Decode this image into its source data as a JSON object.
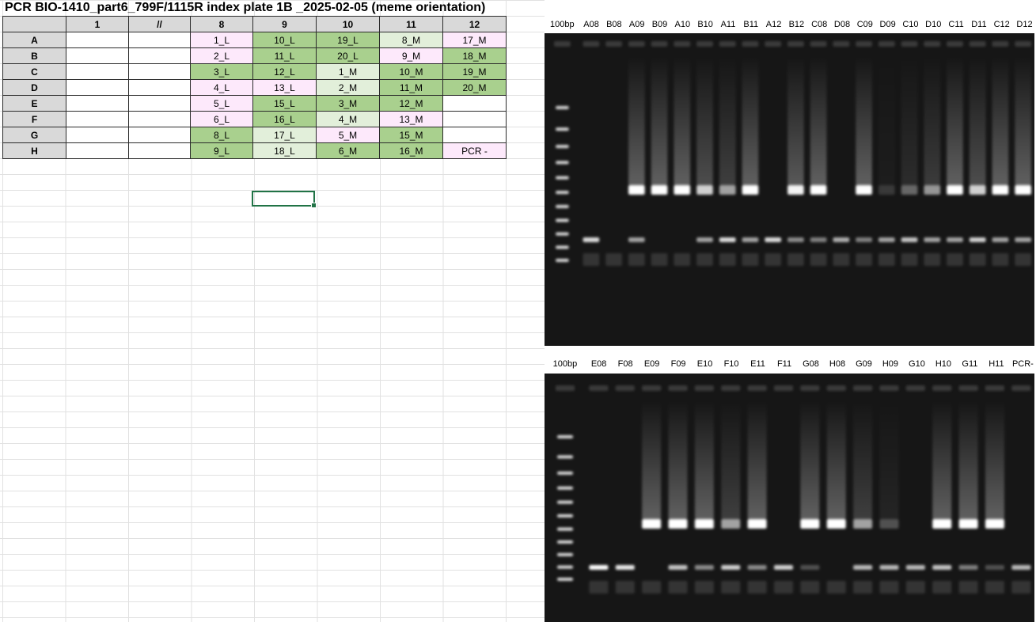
{
  "title": "PCR BIO-1410_part6_799F/1115R index plate 1B _2025-02-05 (meme orientation)",
  "plate": {
    "headers": [
      "",
      "1",
      "//",
      "8",
      "9",
      "10",
      "11",
      "12"
    ],
    "rows": [
      {
        "label": "A",
        "cells": [
          {
            "t": "",
            "c": "w"
          },
          {
            "t": "",
            "c": "w"
          },
          {
            "t": "1_L",
            "c": "p"
          },
          {
            "t": "10_L",
            "c": "g"
          },
          {
            "t": "19_L",
            "c": "g"
          },
          {
            "t": "8_M",
            "c": "lg"
          },
          {
            "t": "17_M",
            "c": "p"
          }
        ]
      },
      {
        "label": "B",
        "cells": [
          {
            "t": "",
            "c": "w"
          },
          {
            "t": "",
            "c": "w"
          },
          {
            "t": "2_L",
            "c": "p"
          },
          {
            "t": "11_L",
            "c": "g"
          },
          {
            "t": "20_L",
            "c": "g"
          },
          {
            "t": "9_M",
            "c": "p"
          },
          {
            "t": "18_M",
            "c": "g"
          }
        ]
      },
      {
        "label": "C",
        "cells": [
          {
            "t": "",
            "c": "w"
          },
          {
            "t": "",
            "c": "w"
          },
          {
            "t": "3_L",
            "c": "g"
          },
          {
            "t": "12_L",
            "c": "g"
          },
          {
            "t": "1_M",
            "c": "lg"
          },
          {
            "t": "10_M",
            "c": "g"
          },
          {
            "t": "19_M",
            "c": "g"
          }
        ]
      },
      {
        "label": "D",
        "cells": [
          {
            "t": "",
            "c": "w"
          },
          {
            "t": "",
            "c": "w"
          },
          {
            "t": "4_L",
            "c": "p"
          },
          {
            "t": "13_L",
            "c": "p"
          },
          {
            "t": "2_M",
            "c": "lg"
          },
          {
            "t": "11_M",
            "c": "g"
          },
          {
            "t": "20_M",
            "c": "g"
          }
        ]
      },
      {
        "label": "E",
        "cells": [
          {
            "t": "",
            "c": "w"
          },
          {
            "t": "",
            "c": "w"
          },
          {
            "t": "5_L",
            "c": "p"
          },
          {
            "t": "15_L",
            "c": "g"
          },
          {
            "t": "3_M",
            "c": "g"
          },
          {
            "t": "12_M",
            "c": "g"
          },
          {
            "t": "",
            "c": "w"
          }
        ]
      },
      {
        "label": "F",
        "cells": [
          {
            "t": "",
            "c": "w"
          },
          {
            "t": "",
            "c": "w"
          },
          {
            "t": "6_L",
            "c": "p"
          },
          {
            "t": "16_L",
            "c": "g"
          },
          {
            "t": "4_M",
            "c": "lg"
          },
          {
            "t": "13_M",
            "c": "p"
          },
          {
            "t": "",
            "c": "w"
          }
        ]
      },
      {
        "label": "G",
        "cells": [
          {
            "t": "",
            "c": "w"
          },
          {
            "t": "",
            "c": "w"
          },
          {
            "t": "8_L",
            "c": "g"
          },
          {
            "t": "17_L",
            "c": "lg"
          },
          {
            "t": "5_M",
            "c": "p"
          },
          {
            "t": "15_M",
            "c": "g"
          },
          {
            "t": "",
            "c": "w"
          }
        ]
      },
      {
        "label": "H",
        "cells": [
          {
            "t": "",
            "c": "w"
          },
          {
            "t": "",
            "c": "w"
          },
          {
            "t": "9_L",
            "c": "g"
          },
          {
            "t": "18_L",
            "c": "lg"
          },
          {
            "t": "6_M",
            "c": "g"
          },
          {
            "t": "16_M",
            "c": "g"
          },
          {
            "t": "PCR -",
            "c": "p"
          }
        ]
      }
    ]
  },
  "colors": {
    "pink": "#fde9fb",
    "green": "#a9d08e",
    "light_green": "#e2efda",
    "selection": "#217346",
    "gel_bg": "#161616"
  },
  "gel_top": {
    "lanes": [
      "100bp",
      "A08",
      "B08",
      "A09",
      "B09",
      "A10",
      "B10",
      "A11",
      "B11",
      "A12",
      "B12",
      "C08",
      "D08",
      "C09",
      "D09",
      "C10",
      "D10",
      "C11",
      "D11",
      "C12",
      "D12"
    ],
    "amplicon_strength": [
      0,
      0,
      0,
      1.0,
      1.0,
      1.0,
      0.75,
      0.55,
      1.0,
      0,
      0.9,
      1.0,
      0,
      1.0,
      0.1,
      0.3,
      0.5,
      1.0,
      0.75,
      1.0,
      1.0
    ],
    "small_band": [
      0,
      0.85,
      0,
      0.6,
      0,
      0,
      0.6,
      0.85,
      0.6,
      0.85,
      0.5,
      0.45,
      0.65,
      0.45,
      0.6,
      0.75,
      0.6,
      0.6,
      0.8,
      0.6,
      0.6
    ]
  },
  "gel_bottom": {
    "lanes": [
      "100bp",
      "E08",
      "F08",
      "E09",
      "F09",
      "E10",
      "F10",
      "E11",
      "F11",
      "G08",
      "H08",
      "G09",
      "H09",
      "G10",
      "H10",
      "G11",
      "H11",
      "PCR-"
    ],
    "amplicon_strength": [
      0,
      0,
      0,
      1.0,
      1.0,
      1.0,
      0.55,
      1.0,
      0,
      1.0,
      1.0,
      0.55,
      0.2,
      0,
      1.0,
      1.0,
      1.0,
      0
    ],
    "small_band": [
      0,
      1.0,
      0.9,
      0,
      0.75,
      0.5,
      0.8,
      0.5,
      0.8,
      0.25,
      0,
      0.7,
      0.7,
      0.7,
      0.75,
      0.45,
      0.25,
      0.7
    ]
  }
}
